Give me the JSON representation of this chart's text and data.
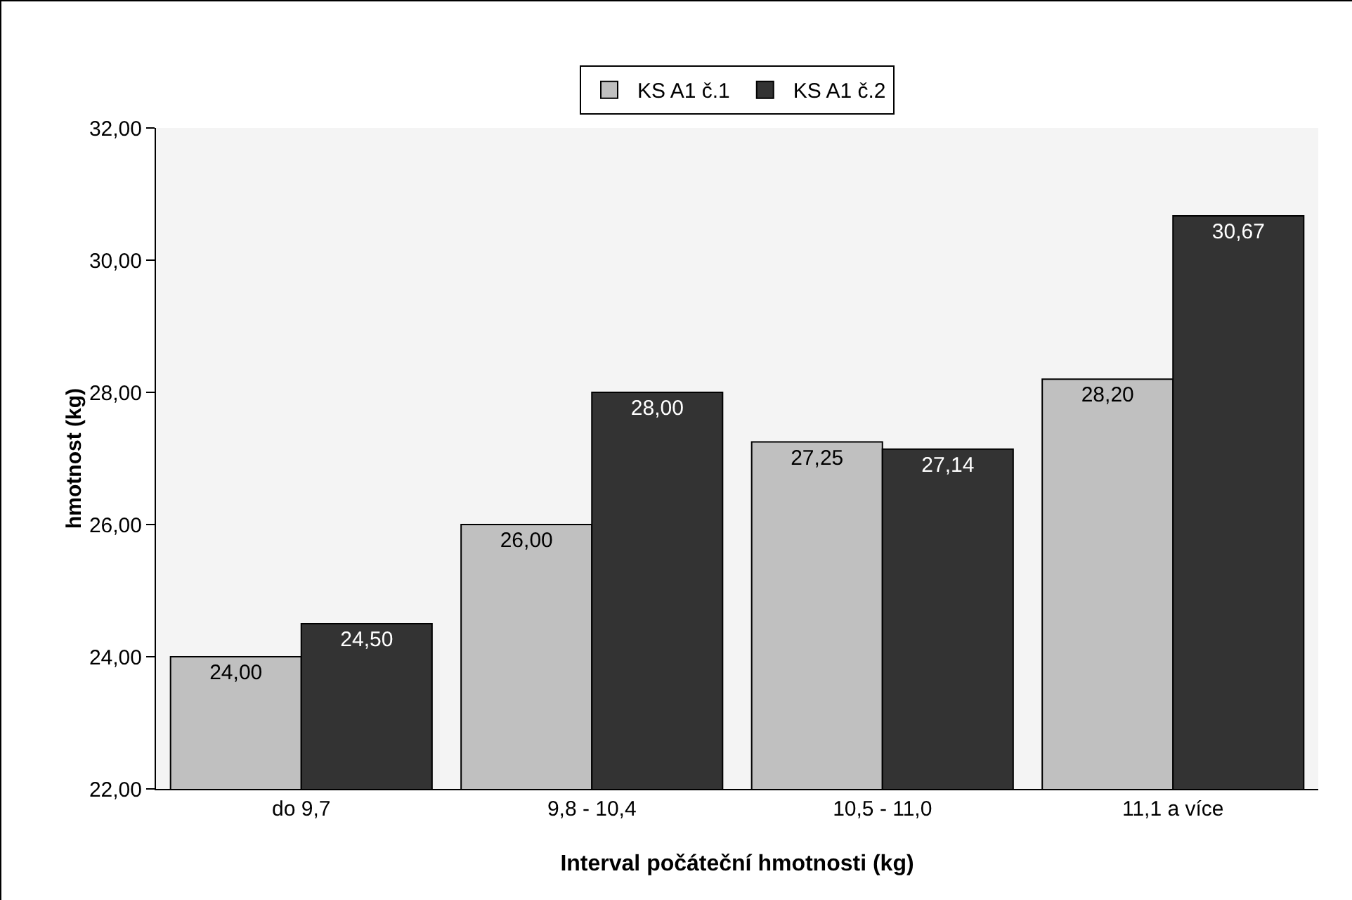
{
  "chart_data": {
    "type": "bar",
    "xlabel": "Interval počáteční hmotnosti (kg)",
    "ylabel": "hmotnost (kg)",
    "categories": [
      "do 9,7",
      "9,8 - 10,4",
      "10,5 - 11,0",
      "11,1 a více"
    ],
    "series": [
      {
        "name": "KS A1 č.1",
        "color": "#c0c0c0",
        "values": [
          24.0,
          26.0,
          27.25,
          28.2
        ],
        "value_labels": [
          "24,00",
          "26,00",
          "27,25",
          "28,20"
        ]
      },
      {
        "name": "KS A1 č.2",
        "color": "#333333",
        "values": [
          24.5,
          28.0,
          27.14,
          30.67
        ],
        "value_labels": [
          "24,50",
          "28,00",
          "27,14",
          "30,67"
        ]
      }
    ],
    "ylim": [
      22,
      32
    ],
    "yticks": [
      {
        "value": 22,
        "label": "22,00"
      },
      {
        "value": 24,
        "label": "24,00"
      },
      {
        "value": 26,
        "label": "26,00"
      },
      {
        "value": 28,
        "label": "28,00"
      },
      {
        "value": 30,
        "label": "30,00"
      },
      {
        "value": 32,
        "label": "32,00"
      }
    ],
    "grid": false,
    "legend": "top"
  }
}
